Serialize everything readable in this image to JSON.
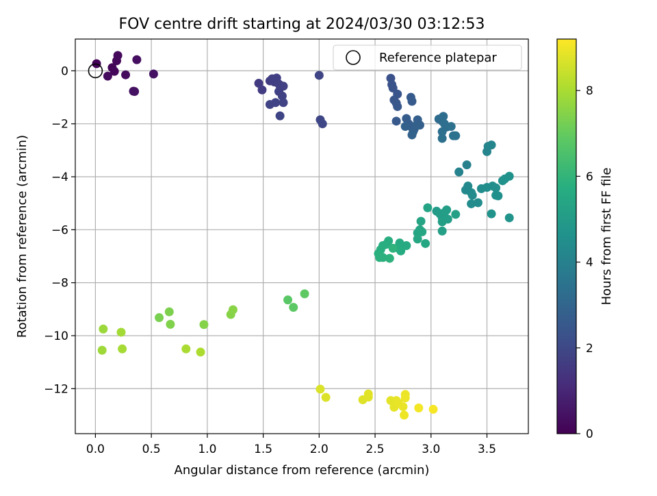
{
  "chart_data": {
    "type": "scatter",
    "title": "FOV centre drift starting at 2024/03/30 03:12:53",
    "xlabel": "Angular distance from reference (arcmin)",
    "ylabel": "Rotation from reference (arcmin)",
    "xlim": [
      -0.18,
      3.87
    ],
    "ylim": [
      -13.7,
      1.2
    ],
    "xticks": [
      0.0,
      0.5,
      1.0,
      1.5,
      2.0,
      2.5,
      3.0,
      3.5
    ],
    "xtick_labels": [
      "0.0",
      "0.5",
      "1.0",
      "1.5",
      "2.0",
      "2.5",
      "3.0",
      "3.5"
    ],
    "yticks": [
      0,
      -2,
      -4,
      -6,
      -8,
      -10,
      -12
    ],
    "ytick_labels": [
      "0",
      "−2",
      "−4",
      "−6",
      "−8",
      "−10",
      "−12"
    ],
    "grid": true,
    "legend": {
      "position": "top-right",
      "entries": [
        "Reference platepar"
      ]
    },
    "reference_point": {
      "x": 0.0,
      "y": 0.0
    },
    "colorbar": {
      "label": "Hours from first FF file",
      "colormap": "viridis",
      "range": [
        0,
        9.2
      ],
      "ticks": [
        0,
        2,
        4,
        6,
        8
      ],
      "tick_labels": [
        "0",
        "2",
        "4",
        "6",
        "8"
      ]
    },
    "points": [
      {
        "x": 0.01,
        "y": 0.27,
        "h": 0.05
      },
      {
        "x": 0.15,
        "y": 0.12,
        "h": 0.1
      },
      {
        "x": 0.17,
        "y": -0.02,
        "h": 0.12
      },
      {
        "x": 0.19,
        "y": 0.38,
        "h": 0.15
      },
      {
        "x": 0.2,
        "y": 0.58,
        "h": 0.2
      },
      {
        "x": 0.11,
        "y": -0.2,
        "h": 0.25
      },
      {
        "x": 0.27,
        "y": -0.15,
        "h": 0.3
      },
      {
        "x": 0.37,
        "y": 0.42,
        "h": 0.35
      },
      {
        "x": 0.34,
        "y": -0.77,
        "h": 0.4
      },
      {
        "x": 0.35,
        "y": -0.78,
        "h": 0.42
      },
      {
        "x": 0.52,
        "y": -0.12,
        "h": 0.45
      },
      {
        "x": 1.46,
        "y": -0.47,
        "h": 1.6
      },
      {
        "x": 1.49,
        "y": -0.72,
        "h": 1.62
      },
      {
        "x": 1.56,
        "y": -0.38,
        "h": 1.65
      },
      {
        "x": 1.58,
        "y": -0.3,
        "h": 1.67
      },
      {
        "x": 1.6,
        "y": -0.42,
        "h": 1.7
      },
      {
        "x": 1.62,
        "y": -0.27,
        "h": 1.72
      },
      {
        "x": 1.64,
        "y": -0.5,
        "h": 1.74
      },
      {
        "x": 1.68,
        "y": -0.58,
        "h": 1.76
      },
      {
        "x": 1.64,
        "y": -0.78,
        "h": 1.78
      },
      {
        "x": 1.67,
        "y": -0.95,
        "h": 1.8
      },
      {
        "x": 1.68,
        "y": -1.2,
        "h": 1.82
      },
      {
        "x": 1.61,
        "y": -1.2,
        "h": 1.84
      },
      {
        "x": 1.56,
        "y": -1.27,
        "h": 1.86
      },
      {
        "x": 1.65,
        "y": -1.7,
        "h": 1.88
      },
      {
        "x": 2.0,
        "y": -0.17,
        "h": 1.9
      },
      {
        "x": 2.01,
        "y": -1.85,
        "h": 1.92
      },
      {
        "x": 2.03,
        "y": -2.0,
        "h": 1.95
      },
      {
        "x": 2.64,
        "y": -0.28,
        "h": 2.3
      },
      {
        "x": 2.65,
        "y": -0.52,
        "h": 2.35
      },
      {
        "x": 2.66,
        "y": -0.65,
        "h": 2.38
      },
      {
        "x": 2.7,
        "y": -0.88,
        "h": 2.4
      },
      {
        "x": 2.67,
        "y": -1.1,
        "h": 2.45
      },
      {
        "x": 2.69,
        "y": -1.22,
        "h": 2.48
      },
      {
        "x": 2.7,
        "y": -1.35,
        "h": 2.5
      },
      {
        "x": 2.69,
        "y": -1.9,
        "h": 2.55
      },
      {
        "x": 2.82,
        "y": -1.0,
        "h": 2.6
      },
      {
        "x": 2.83,
        "y": -1.15,
        "h": 2.62
      },
      {
        "x": 2.78,
        "y": -1.8,
        "h": 2.65
      },
      {
        "x": 2.8,
        "y": -2.0,
        "h": 2.68
      },
      {
        "x": 2.82,
        "y": -2.1,
        "h": 2.7
      },
      {
        "x": 2.85,
        "y": -2.2,
        "h": 2.72
      },
      {
        "x": 2.88,
        "y": -1.85,
        "h": 2.75
      },
      {
        "x": 2.9,
        "y": -2.05,
        "h": 2.78
      },
      {
        "x": 2.84,
        "y": -2.3,
        "h": 2.8
      },
      {
        "x": 2.87,
        "y": -2.05,
        "h": 2.82
      },
      {
        "x": 2.77,
        "y": -2.1,
        "h": 2.85
      },
      {
        "x": 2.83,
        "y": -2.42,
        "h": 2.88
      },
      {
        "x": 3.07,
        "y": -1.82,
        "h": 3.2
      },
      {
        "x": 3.1,
        "y": -1.9,
        "h": 3.25
      },
      {
        "x": 3.11,
        "y": -1.72,
        "h": 3.28
      },
      {
        "x": 3.12,
        "y": -2.0,
        "h": 3.3
      },
      {
        "x": 3.14,
        "y": -2.12,
        "h": 3.32
      },
      {
        "x": 3.1,
        "y": -2.3,
        "h": 3.35
      },
      {
        "x": 3.1,
        "y": -2.55,
        "h": 3.38
      },
      {
        "x": 3.18,
        "y": -2.1,
        "h": 3.4
      },
      {
        "x": 3.2,
        "y": -2.45,
        "h": 3.42
      },
      {
        "x": 3.22,
        "y": -2.45,
        "h": 3.44
      },
      {
        "x": 3.32,
        "y": -3.55,
        "h": 4.0
      },
      {
        "x": 3.25,
        "y": -3.82,
        "h": 4.05
      },
      {
        "x": 3.5,
        "y": -3.05,
        "h": 4.1
      },
      {
        "x": 3.51,
        "y": -2.85,
        "h": 4.12
      },
      {
        "x": 3.54,
        "y": -2.8,
        "h": 4.15
      },
      {
        "x": 3.31,
        "y": -4.5,
        "h": 4.3
      },
      {
        "x": 3.33,
        "y": -4.35,
        "h": 4.32
      },
      {
        "x": 3.36,
        "y": -4.6,
        "h": 4.35
      },
      {
        "x": 3.37,
        "y": -4.7,
        "h": 4.38
      },
      {
        "x": 3.36,
        "y": -5.02,
        "h": 4.4
      },
      {
        "x": 3.42,
        "y": -4.98,
        "h": 4.42
      },
      {
        "x": 3.45,
        "y": -4.45,
        "h": 4.45
      },
      {
        "x": 3.5,
        "y": -4.4,
        "h": 4.48
      },
      {
        "x": 3.55,
        "y": -4.35,
        "h": 4.5
      },
      {
        "x": 3.58,
        "y": -4.42,
        "h": 4.52
      },
      {
        "x": 3.58,
        "y": -4.7,
        "h": 4.55
      },
      {
        "x": 3.6,
        "y": -4.72,
        "h": 4.58
      },
      {
        "x": 3.64,
        "y": -4.15,
        "h": 4.6
      },
      {
        "x": 3.66,
        "y": -4.08,
        "h": 4.62
      },
      {
        "x": 3.7,
        "y": -3.98,
        "h": 4.65
      },
      {
        "x": 3.54,
        "y": -5.4,
        "h": 4.68
      },
      {
        "x": 3.7,
        "y": -5.55,
        "h": 4.7
      },
      {
        "x": 3.05,
        "y": -5.3,
        "h": 5.0
      },
      {
        "x": 3.08,
        "y": -5.4,
        "h": 5.02
      },
      {
        "x": 3.1,
        "y": -5.55,
        "h": 5.05
      },
      {
        "x": 3.12,
        "y": -5.35,
        "h": 5.08
      },
      {
        "x": 3.14,
        "y": -5.25,
        "h": 5.1
      },
      {
        "x": 3.15,
        "y": -5.6,
        "h": 5.12
      },
      {
        "x": 3.1,
        "y": -5.7,
        "h": 5.15
      },
      {
        "x": 3.22,
        "y": -5.42,
        "h": 5.18
      },
      {
        "x": 3.1,
        "y": -6.05,
        "h": 5.2
      },
      {
        "x": 2.97,
        "y": -5.17,
        "h": 5.3
      },
      {
        "x": 2.91,
        "y": -5.68,
        "h": 5.35
      },
      {
        "x": 2.9,
        "y": -6.0,
        "h": 5.38
      },
      {
        "x": 2.88,
        "y": -6.12,
        "h": 5.4
      },
      {
        "x": 2.92,
        "y": -6.08,
        "h": 5.42
      },
      {
        "x": 2.88,
        "y": -6.35,
        "h": 5.45
      },
      {
        "x": 2.95,
        "y": -6.52,
        "h": 5.48
      },
      {
        "x": 2.78,
        "y": -6.6,
        "h": 5.55
      },
      {
        "x": 2.72,
        "y": -6.5,
        "h": 5.6
      },
      {
        "x": 2.7,
        "y": -6.68,
        "h": 5.62
      },
      {
        "x": 2.73,
        "y": -6.8,
        "h": 5.65
      },
      {
        "x": 2.62,
        "y": -6.42,
        "h": 5.7
      },
      {
        "x": 2.6,
        "y": -6.55,
        "h": 5.72
      },
      {
        "x": 2.57,
        "y": -6.6,
        "h": 5.75
      },
      {
        "x": 2.55,
        "y": -6.75,
        "h": 5.78
      },
      {
        "x": 2.53,
        "y": -6.9,
        "h": 5.8
      },
      {
        "x": 2.54,
        "y": -7.05,
        "h": 5.82
      },
      {
        "x": 2.57,
        "y": -7.05,
        "h": 5.85
      },
      {
        "x": 2.63,
        "y": -7.08,
        "h": 5.88
      },
      {
        "x": 2.66,
        "y": -6.7,
        "h": 5.9
      },
      {
        "x": 1.72,
        "y": -8.65,
        "h": 6.8
      },
      {
        "x": 1.77,
        "y": -8.93,
        "h": 6.85
      },
      {
        "x": 1.87,
        "y": -8.42,
        "h": 6.9
      },
      {
        "x": 0.57,
        "y": -9.32,
        "h": 7.3
      },
      {
        "x": 0.66,
        "y": -9.1,
        "h": 7.35
      },
      {
        "x": 0.67,
        "y": -9.57,
        "h": 7.4
      },
      {
        "x": 0.97,
        "y": -9.58,
        "h": 7.45
      },
      {
        "x": 1.21,
        "y": -9.2,
        "h": 7.5
      },
      {
        "x": 1.23,
        "y": -9.02,
        "h": 7.52
      },
      {
        "x": 0.07,
        "y": -9.75,
        "h": 7.8
      },
      {
        "x": 0.06,
        "y": -10.55,
        "h": 7.85
      },
      {
        "x": 0.23,
        "y": -9.87,
        "h": 7.9
      },
      {
        "x": 0.24,
        "y": -10.5,
        "h": 7.95
      },
      {
        "x": 0.81,
        "y": -10.5,
        "h": 8.0
      },
      {
        "x": 0.94,
        "y": -10.62,
        "h": 8.05
      },
      {
        "x": 2.01,
        "y": -12.02,
        "h": 8.7
      },
      {
        "x": 2.06,
        "y": -12.33,
        "h": 8.72
      },
      {
        "x": 2.39,
        "y": -12.42,
        "h": 8.75
      },
      {
        "x": 2.44,
        "y": -12.32,
        "h": 8.78
      },
      {
        "x": 2.44,
        "y": -12.2,
        "h": 8.8
      },
      {
        "x": 2.64,
        "y": -12.45,
        "h": 8.82
      },
      {
        "x": 2.67,
        "y": -12.7,
        "h": 8.85
      },
      {
        "x": 2.69,
        "y": -12.45,
        "h": 8.88
      },
      {
        "x": 2.71,
        "y": -12.55,
        "h": 8.9
      },
      {
        "x": 2.75,
        "y": -12.68,
        "h": 8.92
      },
      {
        "x": 2.77,
        "y": -12.22,
        "h": 8.95
      },
      {
        "x": 2.77,
        "y": -12.35,
        "h": 8.97
      },
      {
        "x": 2.76,
        "y": -13.0,
        "h": 9.0
      },
      {
        "x": 2.89,
        "y": -12.73,
        "h": 9.05
      },
      {
        "x": 3.02,
        "y": -12.78,
        "h": 9.1
      }
    ]
  }
}
